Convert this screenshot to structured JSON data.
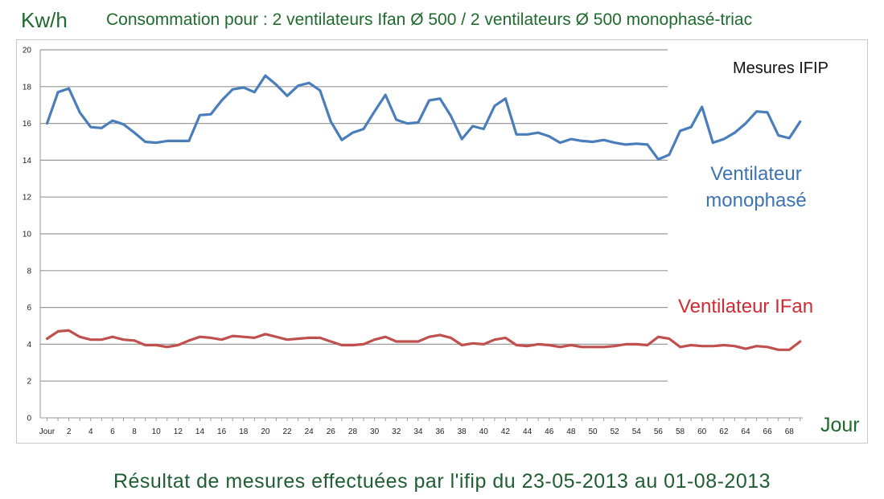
{
  "header": {
    "ylabel": "Kw/h",
    "title": "Consommation pour :  2 ventilateurs Ifan Ø 500 / 2 ventilateurs Ø 500 monophasé-triac"
  },
  "annotations": {
    "measures": "Mesures IFIP",
    "blue_line1": "Ventilateur",
    "blue_line2": "monophasé",
    "red": "Ventilateur IFan"
  },
  "caption": "Résultat de mesures effectuées par l'ifip du 23-05-2013 au 01-08-2013",
  "colors": {
    "monophase": "#4a7ebb",
    "ifan": "#c0504d",
    "grid": "#999999",
    "title_green": "#1f6b2e"
  },
  "chart_data": {
    "type": "line",
    "title": "Consommation pour :  2 ventilateurs Ifan Ø 500 / 2 ventilateurs Ø 500 monophasé-triac",
    "xlabel": "Jour",
    "ylabel": "Kw/h",
    "ylim": [
      0,
      20
    ],
    "yticks": [
      0,
      2,
      4,
      6,
      8,
      10,
      12,
      14,
      16,
      18,
      20
    ],
    "xtick_labels": [
      "Jour",
      "2",
      "4",
      "6",
      "8",
      "10",
      "12",
      "14",
      "16",
      "18",
      "20",
      "22",
      "24",
      "26",
      "28",
      "30",
      "32",
      "34",
      "36",
      "38",
      "40",
      "42",
      "44",
      "46",
      "48",
      "50",
      "52",
      "54",
      "56",
      "58",
      "60",
      "62",
      "64",
      "66",
      "68"
    ],
    "grid": true,
    "x": [
      0,
      1,
      2,
      3,
      4,
      5,
      6,
      7,
      8,
      9,
      10,
      11,
      12,
      13,
      14,
      15,
      16,
      17,
      18,
      19,
      20,
      21,
      22,
      23,
      24,
      25,
      26,
      27,
      28,
      29,
      30,
      31,
      32,
      33,
      34,
      35,
      36,
      37,
      38,
      39,
      40,
      41,
      42,
      43,
      44,
      45,
      46,
      47,
      48,
      49,
      50,
      51,
      52,
      53,
      54,
      55,
      56,
      57,
      58,
      59,
      60,
      61,
      62,
      63,
      64,
      65,
      66,
      67,
      68,
      69
    ],
    "series": [
      {
        "name": "Ventilateur monophasé",
        "color": "#4a7ebb",
        "values": [
          16.0,
          17.7,
          17.9,
          16.6,
          15.8,
          15.75,
          16.15,
          15.95,
          15.5,
          15.0,
          14.95,
          15.05,
          15.05,
          15.05,
          16.45,
          16.5,
          17.25,
          17.85,
          17.95,
          17.7,
          18.6,
          18.1,
          17.5,
          18.05,
          18.2,
          17.8,
          16.1,
          15.1,
          15.5,
          15.7,
          16.65,
          17.55,
          16.2,
          16.0,
          16.05,
          17.25,
          17.35,
          16.4,
          15.15,
          15.85,
          15.7,
          16.95,
          17.35,
          15.4,
          15.4,
          15.5,
          15.3,
          14.95,
          15.15,
          15.05,
          15.0,
          15.1,
          14.95,
          14.85,
          14.9,
          14.85,
          14.05,
          14.3,
          15.6,
          15.8,
          16.9,
          14.95,
          15.15,
          15.5,
          16.0,
          16.65,
          16.6,
          15.35,
          15.2,
          16.1
        ]
      },
      {
        "name": "Ventilateur IFan",
        "color": "#c0504d",
        "values": [
          4.3,
          4.7,
          4.75,
          4.4,
          4.25,
          4.25,
          4.4,
          4.25,
          4.2,
          3.95,
          3.95,
          3.85,
          3.95,
          4.2,
          4.4,
          4.35,
          4.25,
          4.45,
          4.4,
          4.35,
          4.55,
          4.4,
          4.25,
          4.3,
          4.35,
          4.35,
          4.15,
          3.95,
          3.95,
          4.0,
          4.25,
          4.4,
          4.15,
          4.15,
          4.15,
          4.4,
          4.5,
          4.35,
          3.95,
          4.05,
          4.0,
          4.25,
          4.35,
          3.95,
          3.9,
          4.0,
          3.95,
          3.85,
          3.95,
          3.85,
          3.85,
          3.85,
          3.9,
          4.0,
          4.0,
          3.95,
          4.4,
          4.3,
          3.85,
          3.95,
          3.9,
          3.9,
          3.95,
          3.9,
          3.75,
          3.9,
          3.85,
          3.7,
          3.7,
          4.15
        ]
      }
    ]
  }
}
